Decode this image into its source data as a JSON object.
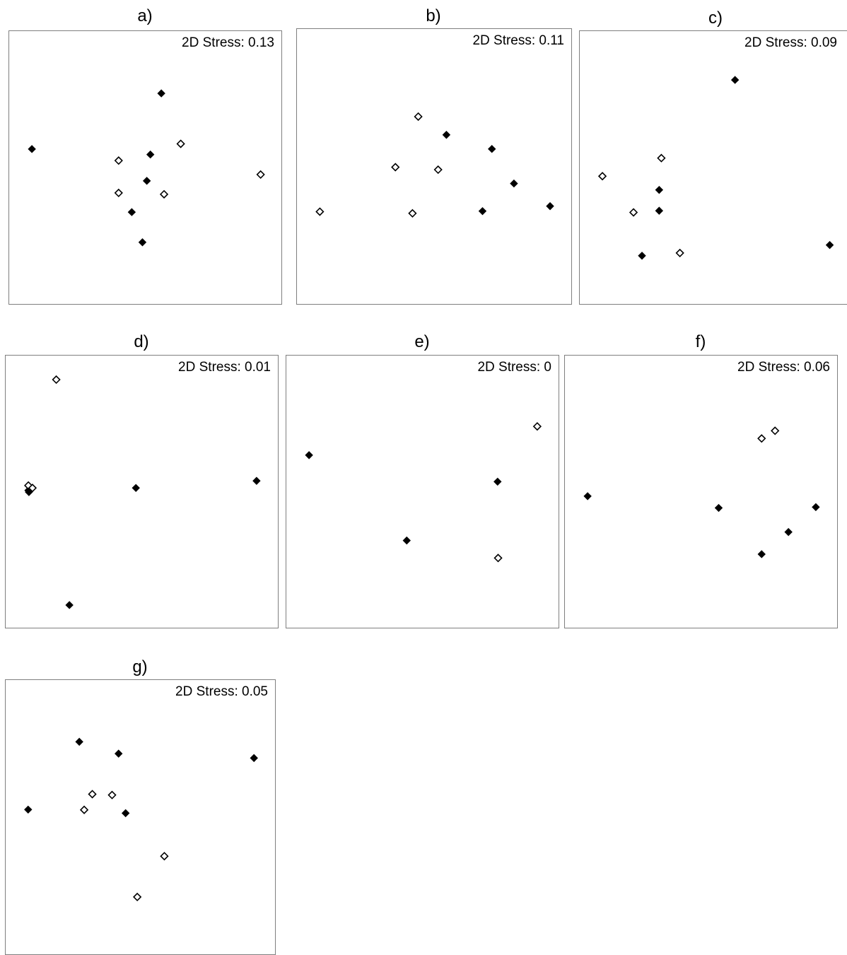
{
  "chart_data": [
    {
      "type": "scatter",
      "title": "a)",
      "annotation": "2D Stress: 0.13",
      "axes": "none",
      "xlim": [
        0,
        1
      ],
      "ylim": [
        0,
        1
      ],
      "series": [
        {
          "marker": "filled-diamond",
          "color": "#000000",
          "x": [
            0.083,
            0.556,
            0.516,
            0.503,
            0.448,
            0.487
          ],
          "y": [
            0.57,
            0.773,
            0.55,
            0.454,
            0.34,
            0.23
          ]
        },
        {
          "marker": "open-diamond",
          "color": "#000000",
          "x": [
            0.627,
            0.4,
            0.4,
            0.566,
            0.919
          ],
          "y": [
            0.589,
            0.528,
            0.41,
            0.405,
            0.477
          ]
        }
      ]
    },
    {
      "type": "scatter",
      "title": "b)",
      "annotation": "2D Stress: 0.11",
      "axes": "none",
      "xlim": [
        0,
        1
      ],
      "ylim": [
        0,
        1
      ],
      "series": [
        {
          "marker": "filled-diamond",
          "color": "#000000",
          "x": [
            0.542,
            0.707,
            0.787,
            0.673,
            0.918
          ],
          "y": [
            0.617,
            0.566,
            0.441,
            0.341,
            0.359
          ]
        },
        {
          "marker": "open-diamond",
          "color": "#000000",
          "x": [
            0.44,
            0.357,
            0.512,
            0.083,
            0.419
          ],
          "y": [
            0.683,
            0.5,
            0.491,
            0.339,
            0.333
          ]
        }
      ]
    },
    {
      "type": "scatter",
      "title": "c)",
      "annotation": "2D Stress: 0.09",
      "axes": "none",
      "xlim": [
        0,
        1
      ],
      "ylim": [
        0,
        1
      ],
      "series": [
        {
          "marker": "filled-diamond",
          "color": "#000000",
          "x": [
            0.569,
            0.291,
            0.291,
            0.228,
            0.916
          ],
          "y": [
            0.822,
            0.421,
            0.345,
            0.181,
            0.22
          ]
        },
        {
          "marker": "open-diamond",
          "color": "#000000",
          "x": [
            0.299,
            0.083,
            0.197,
            0.367
          ],
          "y": [
            0.537,
            0.471,
            0.339,
            0.191
          ]
        }
      ]
    },
    {
      "type": "scatter",
      "title": "d)",
      "annotation": "2D Stress: 0.01",
      "axes": "none",
      "xlim": [
        0,
        1
      ],
      "ylim": [
        0,
        1
      ],
      "series": [
        {
          "marker": "filled-diamond",
          "color": "#000000",
          "x": [
            0.083,
            0.476,
            0.917,
            0.233,
            0.085
          ],
          "y": [
            0.507,
            0.516,
            0.542,
            0.088,
            0.501
          ]
        },
        {
          "marker": "open-diamond",
          "color": "#000000",
          "x": [
            0.185,
            0.083,
            0.098
          ],
          "y": [
            0.912,
            0.525,
            0.516
          ]
        }
      ]
    },
    {
      "type": "scatter",
      "title": "e)",
      "annotation": "2D Stress: 0",
      "axes": "none",
      "xlim": [
        0,
        1
      ],
      "ylim": [
        0,
        1
      ],
      "series": [
        {
          "marker": "filled-diamond",
          "color": "#000000",
          "x": [
            0.083,
            0.772,
            0.44
          ],
          "y": [
            0.636,
            0.539,
            0.324
          ]
        },
        {
          "marker": "open-diamond",
          "color": "#000000",
          "x": [
            0.917,
            0.774
          ],
          "y": [
            0.741,
            0.26
          ]
        }
      ]
    },
    {
      "type": "scatter",
      "title": "f)",
      "annotation": "2D Stress: 0.06",
      "axes": "none",
      "xlim": [
        0,
        1
      ],
      "ylim": [
        0,
        1
      ],
      "series": [
        {
          "marker": "filled-diamond",
          "color": "#000000",
          "x": [
            0.083,
            0.562,
            0.917,
            0.817,
            0.719
          ],
          "y": [
            0.486,
            0.443,
            0.446,
            0.355,
            0.274
          ]
        },
        {
          "marker": "open-diamond",
          "color": "#000000",
          "x": [
            0.768,
            0.719
          ],
          "y": [
            0.725,
            0.697
          ]
        }
      ]
    },
    {
      "type": "scatter",
      "title": "g)",
      "annotation": "2D Stress: 0.05",
      "axes": "none",
      "xlim": [
        0,
        1
      ],
      "ylim": [
        0,
        1
      ],
      "series": [
        {
          "marker": "filled-diamond",
          "color": "#000000",
          "x": [
            0.272,
            0.417,
            0.917,
            0.083,
            0.443
          ],
          "y": [
            0.776,
            0.733,
            0.717,
            0.53,
            0.517
          ]
        },
        {
          "marker": "open-diamond",
          "color": "#000000",
          "x": [
            0.32,
            0.393,
            0.29,
            0.586,
            0.486
          ],
          "y": [
            0.586,
            0.583,
            0.529,
            0.361,
            0.213
          ]
        }
      ]
    }
  ]
}
